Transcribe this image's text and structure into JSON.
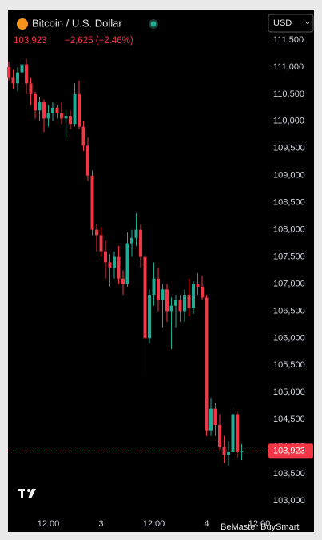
{
  "chart_data": {
    "type": "candlestick",
    "title": "Bitcoin / U.S. Dollar",
    "change": "−2,625 (−2.46%)",
    "currency": "USD",
    "watermark": "BeMaster BuySmart",
    "last_price": {
      "value": 103923,
      "label": "103,923"
    },
    "up_color": "#22ab94",
    "down_color": "#f23645",
    "categories": [
      null,
      null,
      null,
      null,
      null,
      null,
      null,
      null,
      null,
      "12:00",
      null,
      null,
      null,
      null,
      null,
      null,
      null,
      null,
      null,
      null,
      null,
      "3",
      null,
      null,
      null,
      null,
      null,
      null,
      null,
      null,
      null,
      null,
      null,
      "12:00",
      null,
      null,
      null,
      null,
      null,
      null,
      null,
      null,
      null,
      null,
      null,
      "4",
      null,
      null,
      null,
      null,
      null,
      null,
      null,
      null,
      null,
      null,
      null,
      "12:00"
    ],
    "open": [
      111000,
      110800,
      110700,
      110900,
      111050,
      110700,
      110500,
      110200,
      110350,
      110050,
      110150,
      110250,
      110150,
      110050,
      110100,
      109950,
      110500,
      109900,
      109550,
      109000,
      108000,
      107900,
      107600,
      107400,
      107300,
      107500,
      107100,
      107000,
      107750,
      107850,
      108000,
      107500,
      106000,
      106800,
      107100,
      106700,
      106900,
      106500,
      106600,
      106700,
      106500,
      106800,
      106550,
      107000,
      106950,
      106750,
      104300,
      104700,
      104400,
      104000,
      103850,
      103900,
      104600,
      103900,
      null,
      null,
      null,
      null
    ],
    "high": [
      111100,
      110950,
      111000,
      111100,
      111150,
      110800,
      110550,
      110450,
      110400,
      110300,
      110350,
      110300,
      110350,
      110200,
      110200,
      110700,
      110750,
      110000,
      109700,
      109100,
      108100,
      108050,
      107800,
      107550,
      107600,
      107700,
      107250,
      107950,
      108000,
      108300,
      108100,
      107600,
      106900,
      107400,
      107300,
      107000,
      107000,
      106750,
      106800,
      106800,
      106900,
      107100,
      107050,
      107200,
      107150,
      106800,
      104900,
      104800,
      104600,
      104200,
      104100,
      104700,
      104650,
      104050,
      null,
      null,
      null,
      null
    ],
    "low": [
      110750,
      110600,
      110550,
      110700,
      110500,
      110300,
      110050,
      110000,
      109800,
      109900,
      110000,
      110050,
      109950,
      109700,
      109850,
      109900,
      109850,
      109450,
      108900,
      107900,
      107600,
      107500,
      107100,
      106950,
      107100,
      107000,
      106800,
      106950,
      107500,
      107700,
      107300,
      105400,
      105900,
      106600,
      106500,
      106200,
      106300,
      105800,
      106200,
      106300,
      106300,
      106400,
      106450,
      106800,
      106700,
      104200,
      104200,
      104200,
      103950,
      103700,
      103650,
      103800,
      103800,
      103750,
      null,
      null,
      null,
      null
    ],
    "close": [
      110800,
      110700,
      110900,
      111050,
      110700,
      110500,
      110200,
      110350,
      110050,
      110150,
      110250,
      110150,
      110050,
      110100,
      109950,
      110500,
      109900,
      109550,
      109000,
      108000,
      107900,
      107600,
      107400,
      107300,
      107500,
      107100,
      107000,
      107750,
      107850,
      108000,
      107500,
      106000,
      106800,
      107100,
      106700,
      106900,
      106500,
      106600,
      106700,
      106500,
      106800,
      106550,
      107000,
      106950,
      106750,
      104300,
      104700,
      104400,
      104000,
      103850,
      103900,
      104600,
      103900,
      103923,
      null,
      null,
      null,
      null
    ],
    "ylim": [
      102426,
      112060
    ],
    "yticks": [
      {
        "value": 103000,
        "label": "103,000"
      },
      {
        "value": 103500,
        "label": "103,500"
      },
      {
        "value": 104000,
        "label": "104,000"
      },
      {
        "value": 104500,
        "label": "104,500"
      },
      {
        "value": 105000,
        "label": "105,000"
      },
      {
        "value": 105500,
        "label": "105,500"
      },
      {
        "value": 106000,
        "label": "106,000"
      },
      {
        "value": 106500,
        "label": "106,500"
      },
      {
        "value": 107000,
        "label": "107,000"
      },
      {
        "value": 107500,
        "label": "107,500"
      },
      {
        "value": 108000,
        "label": "108,000"
      },
      {
        "value": 108500,
        "label": "108,500"
      },
      {
        "value": 109000,
        "label": "109,000"
      },
      {
        "value": 109500,
        "label": "109,500"
      },
      {
        "value": 110000,
        "label": "110,000"
      },
      {
        "value": 110500,
        "label": "110,500"
      },
      {
        "value": 111000,
        "label": "111,000"
      },
      {
        "value": 111500,
        "label": "111,500"
      }
    ]
  }
}
